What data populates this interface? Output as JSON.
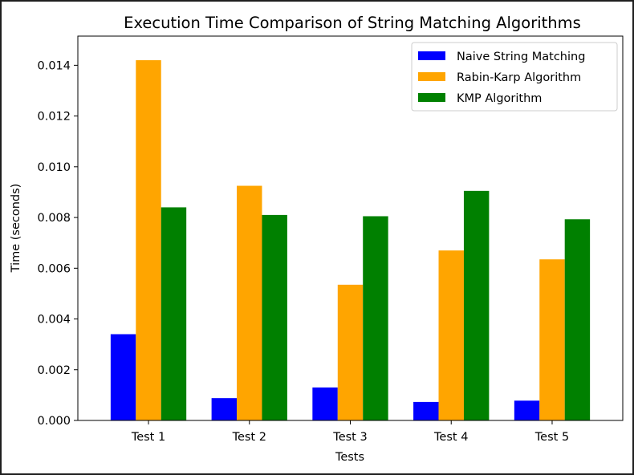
{
  "chart_data": {
    "type": "bar",
    "title": "Execution Time Comparison of String Matching Algorithms",
    "xlabel": "Tests",
    "ylabel": "Time (seconds)",
    "categories": [
      "Test 1",
      "Test 2",
      "Test 3",
      "Test 4",
      "Test 5"
    ],
    "ylim": [
      0,
      0.01515
    ],
    "yticks": [
      0.0,
      0.002,
      0.004,
      0.006,
      0.008,
      0.01,
      0.012,
      0.014
    ],
    "ytick_labels": [
      "0.000",
      "0.002",
      "0.004",
      "0.006",
      "0.008",
      "0.010",
      "0.012",
      "0.014"
    ],
    "grid": false,
    "legend_position": "top-right",
    "series": [
      {
        "name": "Naive String Matching",
        "color": "#0000ff",
        "values": [
          0.0034,
          0.00088,
          0.0013,
          0.00073,
          0.00078
        ]
      },
      {
        "name": "Rabin-Karp Algorithm",
        "color": "#ffa500",
        "values": [
          0.0142,
          0.00925,
          0.00535,
          0.0067,
          0.00635
        ]
      },
      {
        "name": "KMP Algorithm",
        "color": "#008000",
        "values": [
          0.0084,
          0.0081,
          0.00805,
          0.00905,
          0.00793
        ]
      }
    ]
  }
}
